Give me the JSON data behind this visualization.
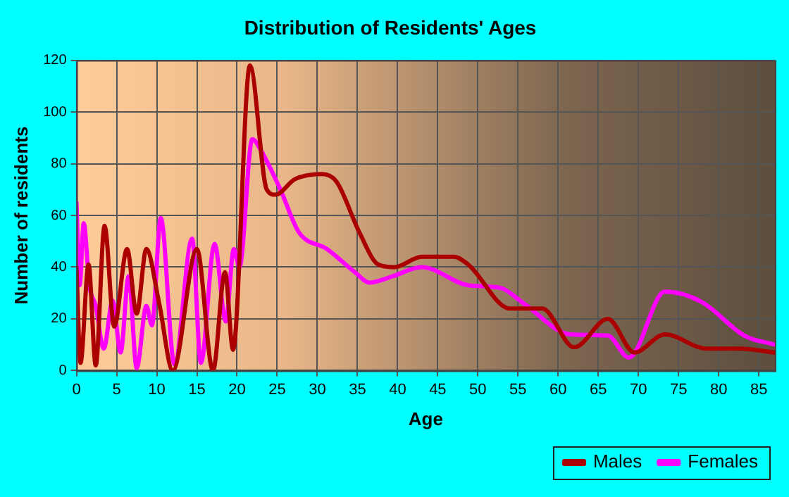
{
  "chart_data": {
    "type": "line",
    "title": "Distribution of Residents' Ages",
    "xlabel": "Age",
    "ylabel": "Number of residents",
    "xlim": [
      0,
      87
    ],
    "xticks": [
      0,
      5,
      10,
      15,
      20,
      25,
      30,
      35,
      40,
      45,
      50,
      55,
      60,
      65,
      70,
      75,
      80,
      85
    ],
    "ylim": [
      0,
      120
    ],
    "yticks": [
      0,
      20,
      40,
      60,
      80,
      100,
      120
    ],
    "grid": true,
    "legend": "bottom right",
    "marker": "none",
    "line_style": "solid",
    "series": [
      {
        "name": "Males",
        "color": "#aa0000",
        "x": [
          0,
          0.5,
          1.5,
          2.4,
          3.5,
          4.7,
          6.3,
          7.5,
          8.7,
          10.3,
          12,
          15,
          17,
          18.5,
          19.5,
          21.6,
          23.7,
          24.8,
          27.2,
          30.6,
          32.4,
          35.3,
          37.6,
          39.6,
          43,
          47,
          48.8,
          54,
          58,
          62,
          66.2,
          69.5,
          73.3,
          78.5,
          82.5,
          87
        ],
        "values": [
          40,
          3,
          41,
          2,
          56,
          17,
          47,
          22,
          47,
          26,
          0,
          47,
          0,
          38,
          8,
          118,
          70,
          68,
          74,
          76,
          73,
          53,
          41,
          40,
          44,
          44,
          41,
          24,
          24,
          9,
          20,
          7,
          14,
          8.5,
          8.5,
          7
        ]
      },
      {
        "name": "Females",
        "color": "#ff00ff",
        "x": [
          0,
          0.4,
          0.9,
          1.6,
          2.4,
          3.4,
          4.5,
          5.5,
          6.5,
          7.5,
          8.7,
          9.4,
          10.5,
          12.2,
          14.4,
          15.5,
          17.2,
          18.6,
          19.6,
          20.3,
          21.9,
          23,
          25.4,
          27.7,
          31.2,
          34.7,
          36.5,
          39.4,
          43,
          48.8,
          52.8,
          55.7,
          61.5,
          66.2,
          68.8,
          73.3,
          77.9,
          83.2,
          87
        ],
        "values": [
          65,
          33,
          57,
          33,
          25,
          8.5,
          27,
          7,
          36.5,
          1,
          25,
          17.5,
          59,
          2.5,
          51,
          3,
          49,
          19,
          47,
          40,
          89.5,
          85,
          70,
          53.5,
          47,
          38,
          34,
          36.5,
          40,
          33,
          32,
          26,
          14,
          13.5,
          5,
          30.5,
          26.5,
          13.5,
          10
        ]
      }
    ]
  }
}
